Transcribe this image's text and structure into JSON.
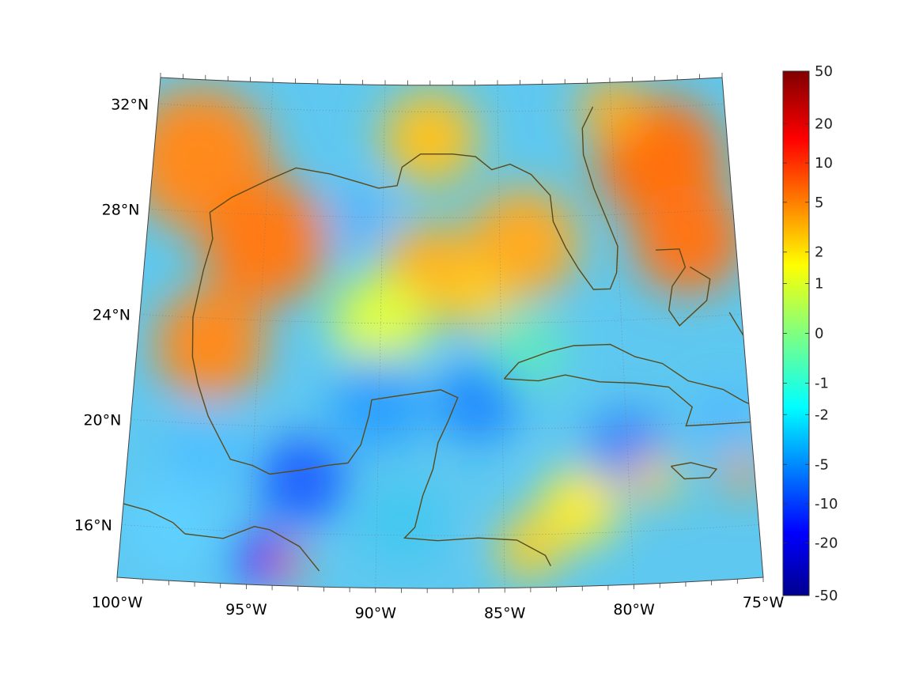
{
  "map": {
    "lat_labels": [
      {
        "lat": 32,
        "text": "32°N"
      },
      {
        "lat": 28,
        "text": "28°N"
      },
      {
        "lat": 24,
        "text": "24°N"
      },
      {
        "lat": 20,
        "text": "20°N"
      },
      {
        "lat": 16,
        "text": "16°N"
      }
    ],
    "lon_labels": [
      {
        "lon": -100,
        "text": "100°W"
      },
      {
        "lon": -95,
        "text": "95°W"
      },
      {
        "lon": -90,
        "text": "90°W"
      },
      {
        "lon": -85,
        "text": "85°W"
      },
      {
        "lon": -80,
        "text": "80°W"
      },
      {
        "lon": -75,
        "text": "75°W"
      }
    ],
    "projection": "conic",
    "gridlines": true,
    "coastline_color": "#5a4a1a",
    "lat_range": [
      14,
      33
    ],
    "lon_range": [
      -100,
      -75
    ]
  },
  "colorbar": {
    "colormap": "jet",
    "ticks": [
      "50",
      "20",
      "10",
      "5",
      "2",
      "1",
      "0",
      "-1",
      "-2",
      "-5",
      "-10",
      "-20",
      "-50"
    ],
    "range": [
      -50,
      50
    ]
  }
}
